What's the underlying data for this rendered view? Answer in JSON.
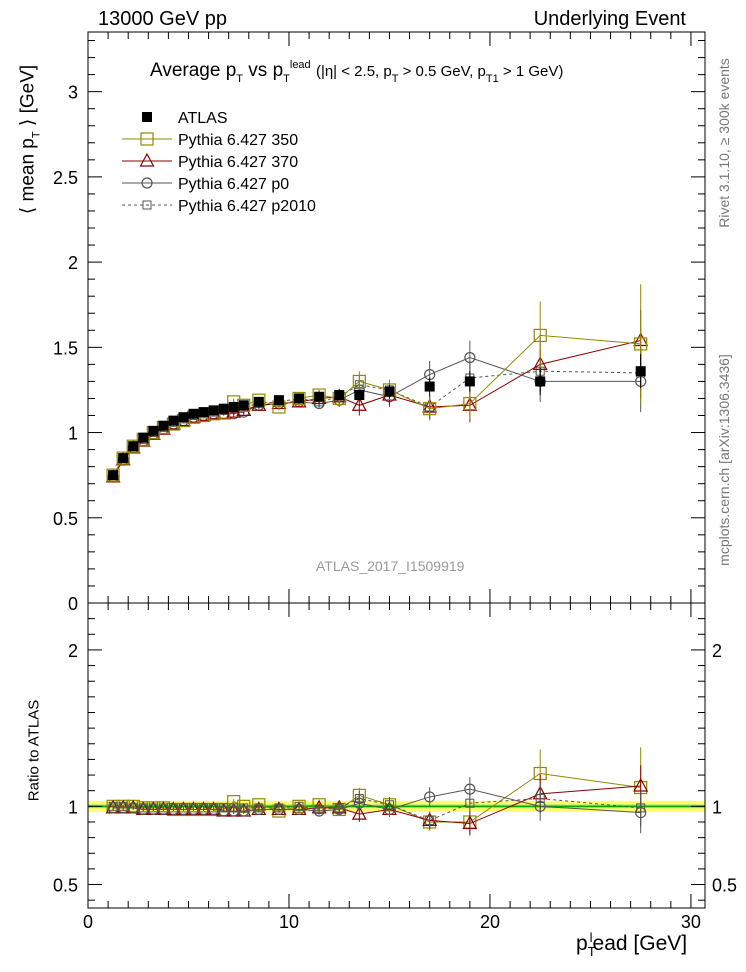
{
  "header": {
    "left": "13000 GeV pp",
    "right": "Underlying Event"
  },
  "side_labels": {
    "rivet": "Rivet 3.1.10, ≥ 300k events",
    "mcplots": "mcplots.cern.ch [arXiv:1306.3436]"
  },
  "watermark": "ATLAS_2017_I1509919",
  "title": {
    "main": "Average p",
    "sub1": "T",
    "vs": " vs p",
    "sub2": "T",
    "sup2": "lead",
    "cuts": "(|η| < 2.5, p",
    "cuts_sub1": "T",
    "cuts_mid": " > 0.5 GeV, p",
    "cuts_sub2": "T1",
    "cuts_end": " > 1 GeV)"
  },
  "axes": {
    "ylabel_main_a": "⟨ mean p",
    "ylabel_main_sub": "T",
    "ylabel_main_b": " ⟩ [GeV]",
    "ylabel_ratio": "Ratio to ATLAS",
    "xlabel_a": "p",
    "xlabel_sub": "T",
    "xlabel_sup": "l",
    "xlabel_b": "ead [GeV]",
    "main_yticks": [
      "0",
      "0.5",
      "1",
      "1.5",
      "2",
      "2.5",
      "3"
    ],
    "ratio_yticks": [
      "0.5",
      "1",
      "2"
    ],
    "xticks": [
      "0",
      "10",
      "20",
      "30"
    ]
  },
  "colors": {
    "atlas": "#000000",
    "p350": "#8f8a00",
    "p370": "#8b0000",
    "p0": "#555555",
    "p2010": "#555555",
    "band_yellow": "#ffff66",
    "band_green": "#00aa00"
  },
  "chart_data": {
    "type": "scatter",
    "main": {
      "xlim": [
        0,
        30.7
      ],
      "ylim": [
        0,
        3.35
      ],
      "x": [
        1.25,
        1.75,
        2.25,
        2.75,
        3.25,
        3.75,
        4.25,
        4.75,
        5.25,
        5.75,
        6.25,
        6.75,
        7.25,
        7.75,
        8.5,
        9.5,
        10.5,
        11.5,
        12.5,
        13.5,
        15.0,
        17.0,
        19.0,
        22.5,
        27.5
      ],
      "series": [
        {
          "name": "ATLAS",
          "key": "atlas",
          "marker": "filled-square",
          "values": [
            0.75,
            0.85,
            0.92,
            0.97,
            1.01,
            1.04,
            1.07,
            1.09,
            1.11,
            1.12,
            1.13,
            1.14,
            1.15,
            1.16,
            1.18,
            1.19,
            1.2,
            1.21,
            1.22,
            1.22,
            1.24,
            1.27,
            1.3,
            1.3,
            1.36
          ],
          "errors": [
            0.01,
            0.01,
            0.01,
            0.01,
            0.01,
            0.01,
            0.01,
            0.01,
            0.01,
            0.01,
            0.01,
            0.01,
            0.01,
            0.01,
            0.01,
            0.02,
            0.02,
            0.02,
            0.02,
            0.03,
            0.04,
            0.05,
            0.06,
            0.08,
            0.1
          ]
        },
        {
          "name": "Pythia 6.427 350",
          "key": "p350",
          "marker": "open-square",
          "dash": false,
          "values": [
            0.75,
            0.85,
            0.92,
            0.96,
            1.0,
            1.03,
            1.05,
            1.07,
            1.09,
            1.1,
            1.11,
            1.12,
            1.18,
            1.16,
            1.19,
            1.15,
            1.2,
            1.22,
            1.2,
            1.3,
            1.25,
            1.14,
            1.17,
            1.57,
            1.52
          ],
          "errors": [
            0.01,
            0.01,
            0.01,
            0.01,
            0.01,
            0.01,
            0.01,
            0.01,
            0.01,
            0.01,
            0.01,
            0.01,
            0.02,
            0.02,
            0.02,
            0.02,
            0.03,
            0.03,
            0.04,
            0.06,
            0.06,
            0.07,
            0.1,
            0.2,
            0.35
          ]
        },
        {
          "name": "Pythia 6.427 370",
          "key": "p370",
          "marker": "open-triangle",
          "dash": false,
          "values": [
            0.74,
            0.84,
            0.91,
            0.95,
            0.99,
            1.02,
            1.05,
            1.07,
            1.09,
            1.1,
            1.11,
            1.11,
            1.12,
            1.13,
            1.16,
            1.17,
            1.18,
            1.2,
            1.21,
            1.16,
            1.22,
            1.15,
            1.16,
            1.4,
            1.54
          ],
          "errors": [
            0.01,
            0.01,
            0.01,
            0.01,
            0.01,
            0.01,
            0.01,
            0.01,
            0.01,
            0.01,
            0.01,
            0.01,
            0.02,
            0.02,
            0.02,
            0.02,
            0.03,
            0.03,
            0.04,
            0.06,
            0.06,
            0.07,
            0.1,
            0.16,
            0.18
          ]
        },
        {
          "name": "Pythia 6.427 p0",
          "key": "p0",
          "marker": "open-circle",
          "dash": false,
          "values": [
            0.74,
            0.84,
            0.91,
            0.95,
            0.99,
            1.02,
            1.05,
            1.07,
            1.09,
            1.1,
            1.11,
            1.11,
            1.11,
            1.12,
            1.16,
            1.17,
            1.18,
            1.17,
            1.19,
            1.25,
            1.21,
            1.34,
            1.44,
            1.3,
            1.3
          ],
          "errors": [
            0.01,
            0.01,
            0.01,
            0.01,
            0.01,
            0.01,
            0.01,
            0.01,
            0.01,
            0.01,
            0.01,
            0.01,
            0.02,
            0.02,
            0.02,
            0.02,
            0.03,
            0.03,
            0.04,
            0.06,
            0.06,
            0.08,
            0.1,
            0.12,
            0.18
          ]
        },
        {
          "name": "Pythia 6.427 p2010",
          "key": "p2010",
          "marker": "open-square-small",
          "dash": true,
          "values": [
            0.75,
            0.85,
            0.91,
            0.96,
            1.0,
            1.03,
            1.06,
            1.08,
            1.1,
            1.11,
            1.12,
            1.13,
            1.14,
            1.15,
            1.17,
            1.18,
            1.2,
            1.18,
            1.21,
            1.28,
            1.25,
            1.15,
            1.32,
            1.36,
            1.35
          ],
          "errors": [
            0.01,
            0.01,
            0.01,
            0.01,
            0.01,
            0.01,
            0.01,
            0.01,
            0.01,
            0.01,
            0.01,
            0.01,
            0.02,
            0.02,
            0.02,
            0.02,
            0.03,
            0.03,
            0.04,
            0.06,
            0.06,
            0.07,
            0.1,
            0.12,
            0.15
          ]
        }
      ]
    },
    "ratio": {
      "ylim": [
        0.35,
        2.3
      ],
      "band": {
        "yellow_halfwidth": 0.035,
        "green_halfwidth": 0.012
      },
      "series": [
        {
          "key": "p350",
          "values": [
            1.0,
            1.0,
            1.0,
            0.99,
            0.99,
            0.99,
            0.98,
            0.98,
            0.98,
            0.98,
            0.98,
            0.98,
            1.03,
            1.0,
            1.01,
            0.97,
            1.0,
            1.01,
            0.98,
            1.07,
            1.01,
            0.9,
            0.9,
            1.21,
            1.12
          ]
        },
        {
          "key": "p370",
          "values": [
            0.99,
            0.99,
            0.99,
            0.98,
            0.98,
            0.98,
            0.98,
            0.98,
            0.98,
            0.98,
            0.98,
            0.97,
            0.97,
            0.97,
            0.98,
            0.98,
            0.98,
            0.99,
            0.99,
            0.95,
            0.98,
            0.91,
            0.89,
            1.08,
            1.13
          ]
        },
        {
          "key": "p0",
          "values": [
            0.99,
            0.99,
            0.99,
            0.98,
            0.98,
            0.98,
            0.98,
            0.98,
            0.98,
            0.98,
            0.98,
            0.97,
            0.97,
            0.97,
            0.98,
            0.98,
            0.98,
            0.97,
            0.98,
            1.02,
            0.98,
            1.06,
            1.11,
            1.0,
            0.96
          ]
        },
        {
          "key": "p2010",
          "values": [
            1.0,
            1.0,
            0.99,
            0.99,
            0.99,
            0.99,
            0.99,
            0.99,
            0.99,
            0.99,
            0.99,
            0.99,
            0.99,
            0.99,
            0.99,
            0.99,
            1.0,
            0.98,
            0.99,
            1.05,
            1.01,
            0.91,
            1.02,
            1.05,
            0.99
          ]
        }
      ]
    }
  }
}
